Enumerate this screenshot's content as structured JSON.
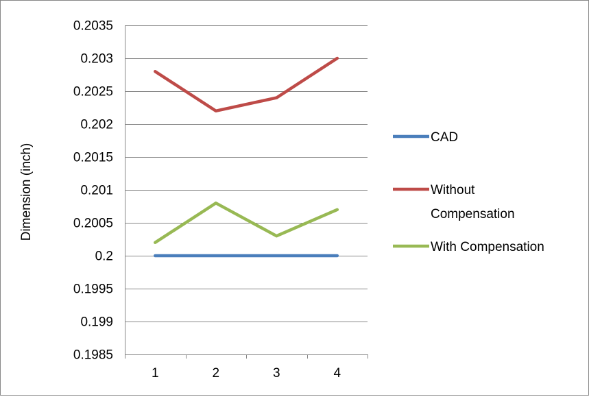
{
  "chart_data": {
    "type": "line",
    "title": "",
    "xlabel": "",
    "ylabel": "Dimension (inch)",
    "categories": [
      "1",
      "2",
      "3",
      "4"
    ],
    "ylim": [
      0.1985,
      0.2035
    ],
    "yticks": [
      "0.1985",
      "0.199",
      "0.1995",
      "0.2",
      "0.2005",
      "0.201",
      "0.2015",
      "0.202",
      "0.2025",
      "0.203",
      "0.2035"
    ],
    "grid": "horizontal",
    "legend_position": "right",
    "series": [
      {
        "name": "CAD",
        "values": [
          0.2,
          0.2,
          0.2,
          0.2
        ],
        "color": "#4a7ebb"
      },
      {
        "name": "Without Compensation",
        "values": [
          0.2028,
          0.2022,
          0.2024,
          0.203
        ],
        "color": "#be4b48",
        "legend_lines": [
          "Without",
          "Compensation"
        ]
      },
      {
        "name": "With Compensation",
        "values": [
          0.2002,
          0.2008,
          0.2003,
          0.2007
        ],
        "color": "#98b954"
      }
    ]
  }
}
